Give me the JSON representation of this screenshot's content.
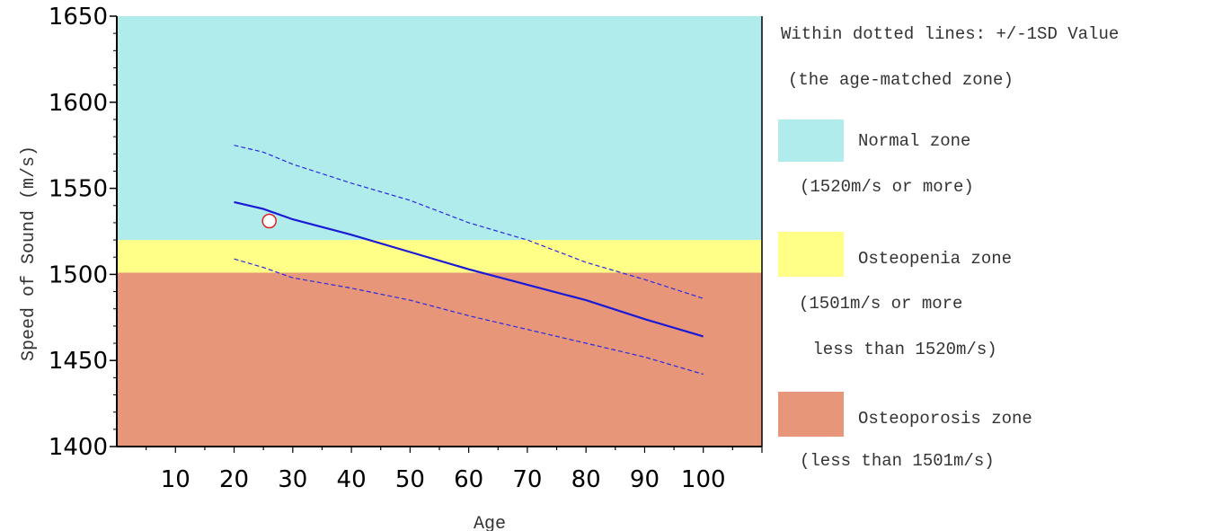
{
  "chart_data": {
    "type": "line",
    "xlabel": "Age",
    "ylabel": "Speed of Sound (m/s)",
    "xlim": [
      0,
      110
    ],
    "ylim": [
      1400,
      1650
    ],
    "xticks": [
      10,
      20,
      30,
      40,
      50,
      60,
      70,
      80,
      90,
      100
    ],
    "yticks": [
      1400,
      1450,
      1500,
      1550,
      1600,
      1650
    ],
    "grid": false,
    "zones": [
      {
        "name": "Normal zone",
        "from": 1520,
        "to": 1650,
        "color": "#b0ecec"
      },
      {
        "name": "Osteopenia zone",
        "from": 1501,
        "to": 1520,
        "color": "#ffff88"
      },
      {
        "name": "Osteoporosis zone",
        "from": 1400,
        "to": 1501,
        "color": "#e8967a"
      }
    ],
    "series": [
      {
        "style": "solid",
        "color": "#1a1ad6",
        "x": [
          20,
          25,
          30,
          40,
          50,
          60,
          70,
          80,
          90,
          100
        ],
        "y": [
          1542,
          1538,
          1532,
          1523,
          1513,
          1503,
          1494,
          1485,
          1474,
          1464
        ]
      },
      {
        "style": "dashed",
        "color": "#2a2ae0",
        "x": [
          20,
          25,
          30,
          40,
          50,
          60,
          70,
          80,
          90,
          100
        ],
        "y": [
          1575,
          1571,
          1564,
          1553,
          1543,
          1530,
          1520,
          1507,
          1497,
          1486
        ]
      },
      {
        "style": "dashed",
        "color": "#2a2ae0",
        "x": [
          20,
          25,
          30,
          40,
          50,
          60,
          70,
          80,
          90,
          100
        ],
        "y": [
          1509,
          1504,
          1498,
          1492,
          1485,
          1476,
          1468,
          1460,
          1452,
          1442
        ]
      }
    ],
    "points": [
      {
        "x": 26,
        "y": 1531,
        "marker": "open-circle",
        "color": "#dd2222"
      }
    ]
  },
  "legend": {
    "heading_line1": "Within dotted lines: +/-1SD Value",
    "heading_line2": "(the age-matched zone)",
    "items": [
      {
        "title": "Normal zone",
        "lines": [
          "(1520m/s or more)"
        ],
        "color": "#b0ecec"
      },
      {
        "title": "Osteopenia zone",
        "lines": [
          "(1501m/s or more",
          " less than 1520m/s)"
        ],
        "color": "#ffff88"
      },
      {
        "title": "Osteoporosis zone",
        "lines": [
          "(less than 1501m/s)"
        ],
        "color": "#e8967a"
      }
    ]
  }
}
